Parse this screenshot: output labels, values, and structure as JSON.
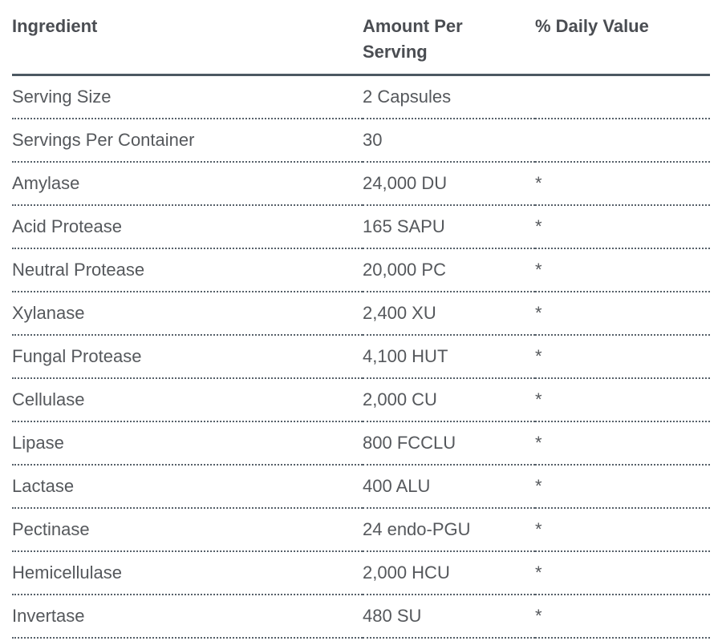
{
  "table": {
    "columns": [
      {
        "label": "Ingredient"
      },
      {
        "label": "Amount Per Serving"
      },
      {
        "label": "% Daily Value"
      }
    ],
    "rows": [
      {
        "ingredient": "Serving Size",
        "amount": "2 Capsules",
        "daily_value": ""
      },
      {
        "ingredient": "Servings Per Container",
        "amount": "30",
        "daily_value": ""
      },
      {
        "ingredient": "Amylase",
        "amount": "24,000 DU",
        "daily_value": "*"
      },
      {
        "ingredient": "Acid Protease",
        "amount": "165 SAPU",
        "daily_value": "*"
      },
      {
        "ingredient": "Neutral Protease",
        "amount": "20,000 PC",
        "daily_value": "*"
      },
      {
        "ingredient": "Xylanase",
        "amount": "2,400 XU",
        "daily_value": "*"
      },
      {
        "ingredient": "Fungal Protease",
        "amount": "4,100 HUT",
        "daily_value": "*"
      },
      {
        "ingredient": "Cellulase",
        "amount": "2,000 CU",
        "daily_value": "*"
      },
      {
        "ingredient": "Lipase",
        "amount": "800 FCCLU",
        "daily_value": "*"
      },
      {
        "ingredient": "Lactase",
        "amount": "400 ALU",
        "daily_value": "*"
      },
      {
        "ingredient": "Pectinase",
        "amount": "24 endo-PGU",
        "daily_value": "*"
      },
      {
        "ingredient": "Hemicellulase",
        "amount": "2,000 HCU",
        "daily_value": "*"
      },
      {
        "ingredient": "Invertase",
        "amount": "480 SU",
        "daily_value": "*"
      }
    ],
    "colors": {
      "header_rule": "#4c5862",
      "row_divider": "#566069",
      "header_text": "#4a4d52",
      "body_text": "#55585c",
      "background": "#ffffff"
    }
  }
}
